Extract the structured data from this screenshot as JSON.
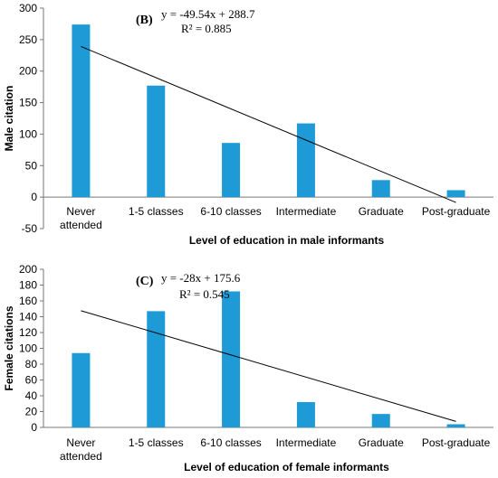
{
  "chart_data": [
    {
      "type": "bar",
      "panel_label": "(B)",
      "categories": [
        "Never attended",
        "1-5 classes",
        "6-10 classes",
        "Intermediate",
        "Graduate",
        "Post-graduate"
      ],
      "values": [
        274,
        177,
        86,
        117,
        27,
        11
      ],
      "ylim": [
        -50,
        300
      ],
      "yticks": [
        -50,
        0,
        50,
        100,
        150,
        200,
        250,
        300
      ],
      "ylabel": "Male citation",
      "xlabel": "Level of education in male informants",
      "bar_color": "#1e9ad6",
      "trendline": {
        "slope": -49.54,
        "intercept": 288.7
      },
      "equation": "y = -49.54x + 288.7",
      "r2_label": "R² = 0.885",
      "grid": false
    },
    {
      "type": "bar",
      "panel_label": "(C)",
      "categories": [
        "Never attended",
        "1-5 classes",
        "6-10 classes",
        "Intermediate",
        "Graduate",
        "Post-graduate"
      ],
      "values": [
        94,
        147,
        172,
        32,
        17,
        4
      ],
      "ylim": [
        0,
        200
      ],
      "yticks": [
        0,
        20,
        40,
        60,
        80,
        100,
        120,
        140,
        160,
        180,
        200
      ],
      "ylabel": "Female citations",
      "xlabel": "Level of education of female informants",
      "bar_color": "#1e9ad6",
      "trendline": {
        "slope": -28,
        "intercept": 175.6
      },
      "equation": "y = -28x + 175.6",
      "r2_label": "R² = 0.545",
      "grid": false
    }
  ]
}
